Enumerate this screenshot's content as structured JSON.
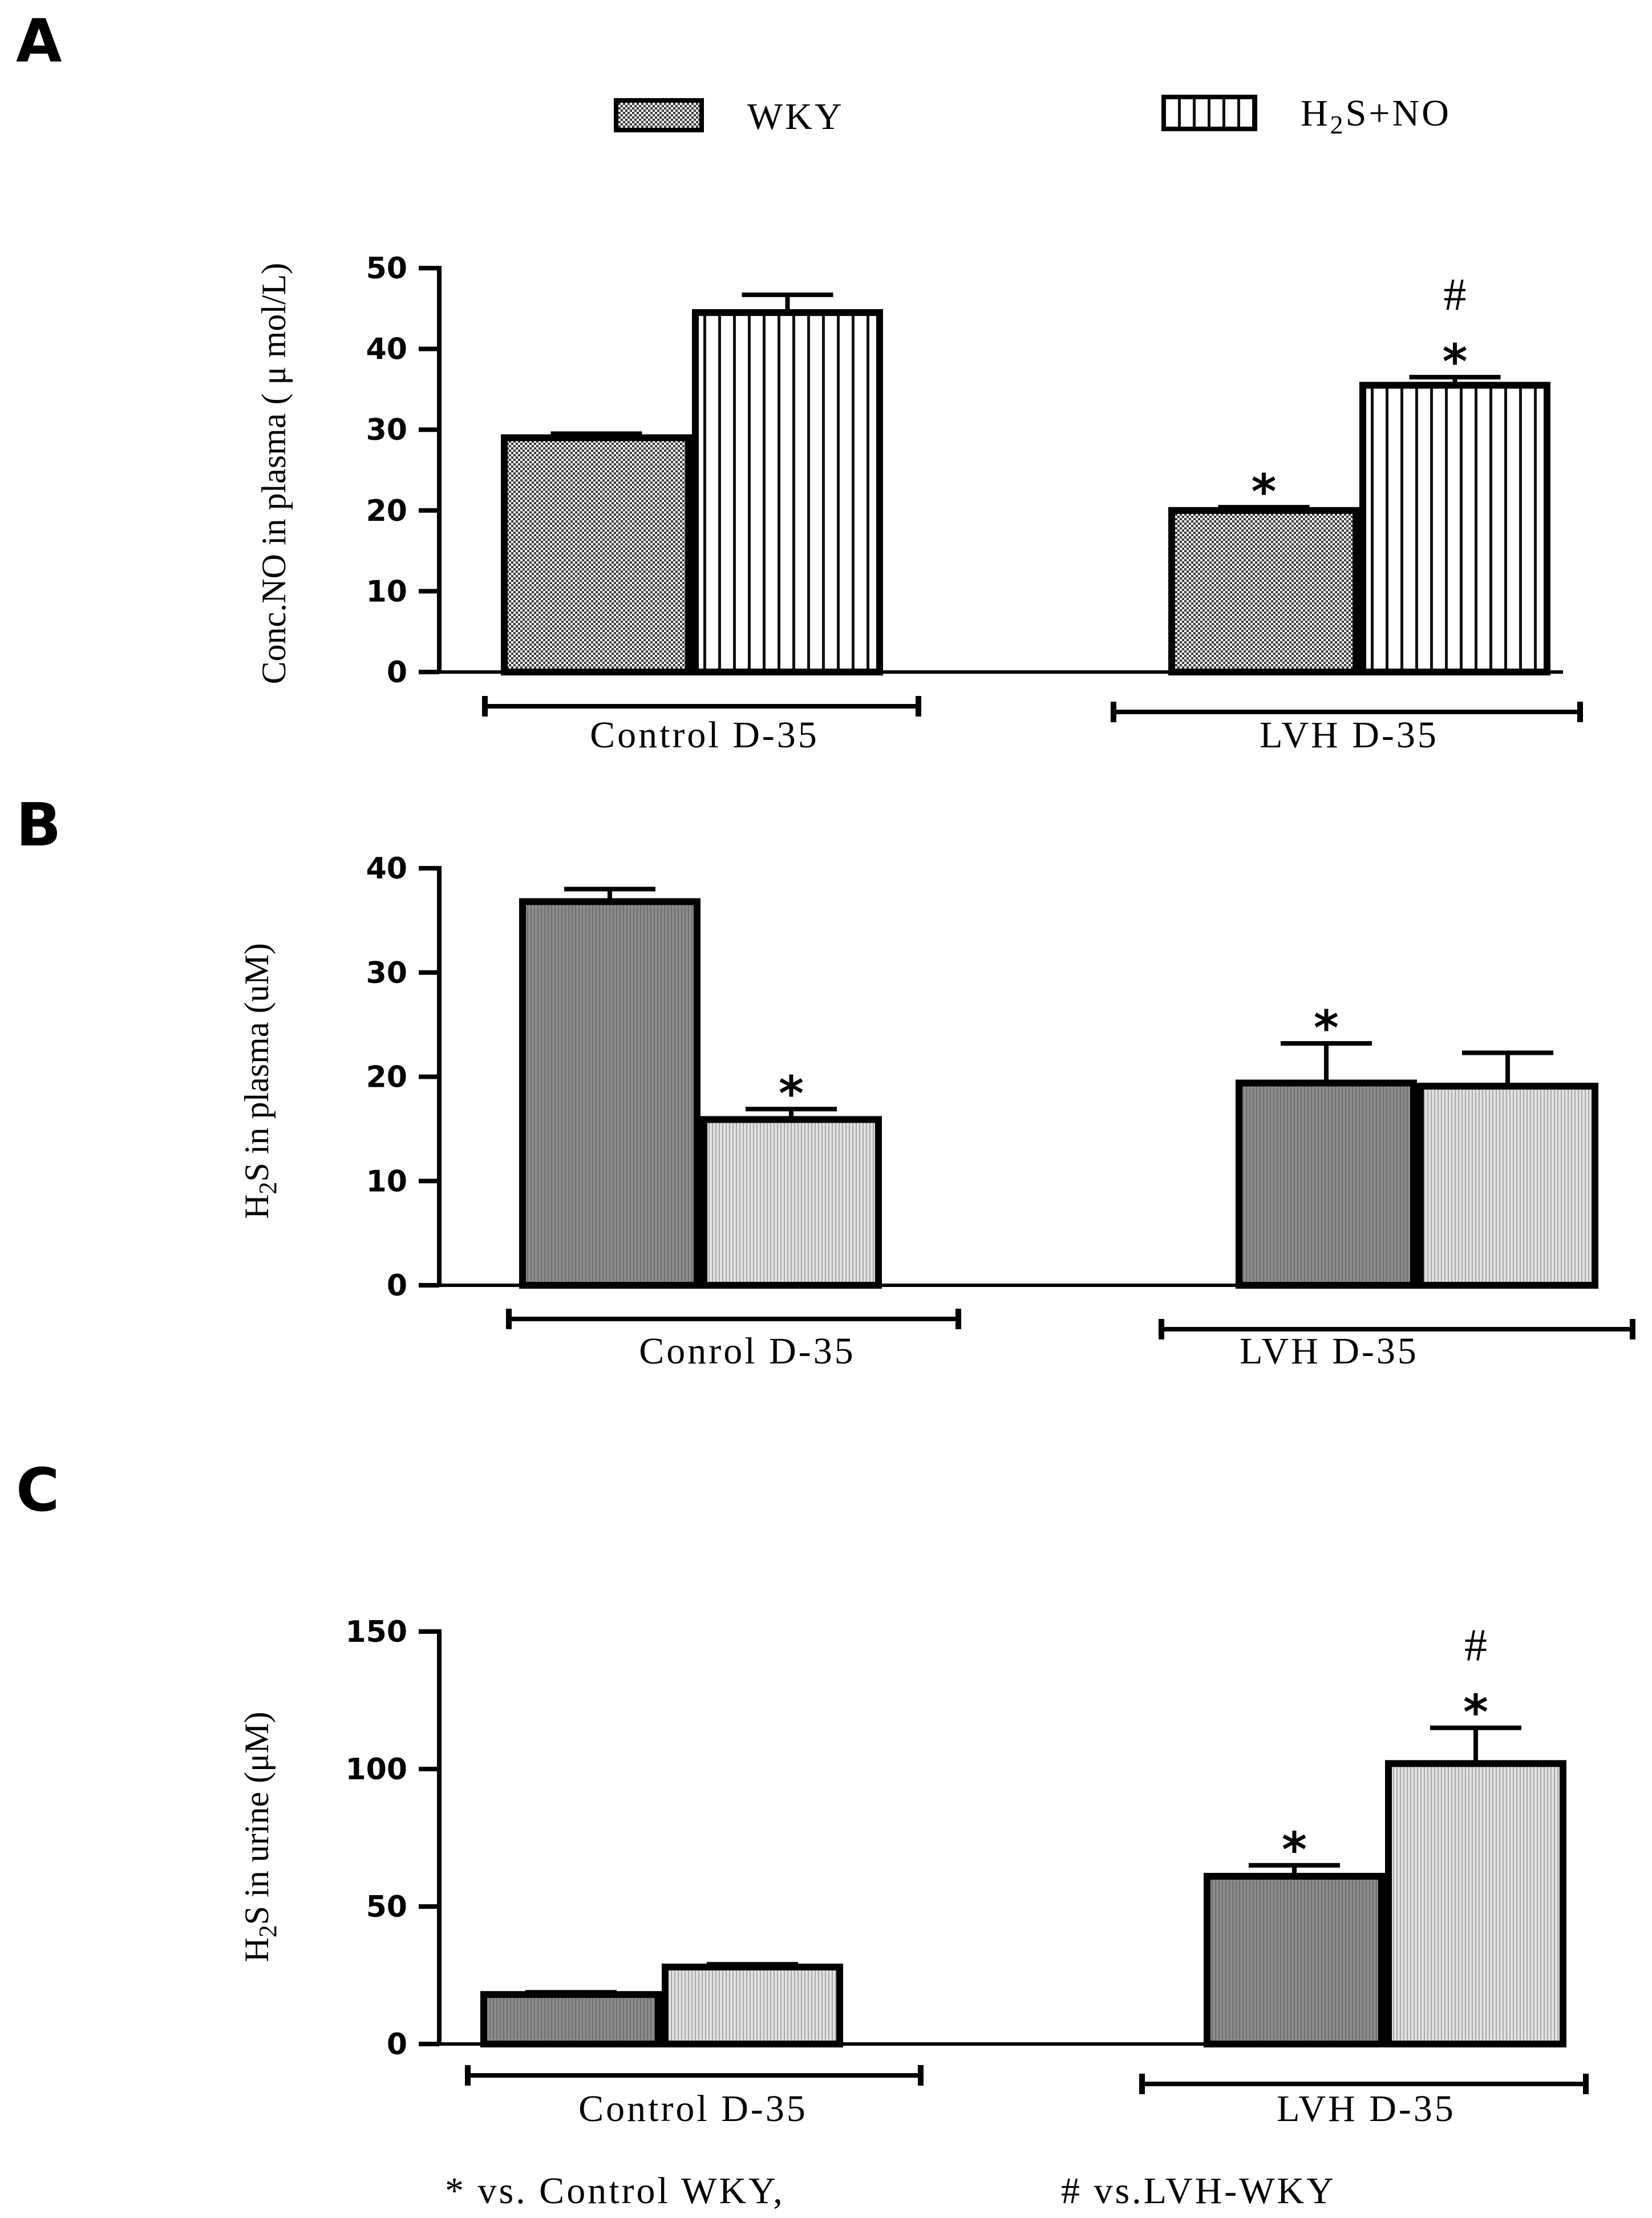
{
  "legend": {
    "items": [
      {
        "name": "WKY",
        "pattern": "checker"
      },
      {
        "name": "H2S+NO",
        "pattern": "vstripes",
        "html_label": "H₂S+NO"
      }
    ]
  },
  "colors": {
    "ink": "#000000",
    "bar_gray": "#8a8a8a",
    "bar_light": "#d2d2d2"
  },
  "footnote": {
    "star": "* vs. Control WKY,",
    "hash": "# vs.LVH-WKY"
  },
  "chart_data": [
    {
      "panel": "A",
      "type": "bar",
      "ylabel": "Conc.NO in plasma ( μ mol/L)",
      "ylim": [
        0,
        50
      ],
      "yticks": [
        0,
        10,
        20,
        30,
        40,
        50
      ],
      "categories": [
        "Control D-35",
        "LVH D-35"
      ],
      "series": [
        {
          "name": "WKY",
          "values": [
            29,
            20
          ],
          "errors": [
            0.5,
            0.4
          ],
          "annotations": [
            "",
            "*"
          ]
        },
        {
          "name": "H2S+NO",
          "values": [
            44.5,
            35.5
          ],
          "errors": [
            2.2,
            1.0
          ],
          "annotations": [
            "",
            "*\n#"
          ]
        }
      ]
    },
    {
      "panel": "B",
      "type": "bar",
      "ylabel": "H2S in plasma (uM)",
      "ylim": [
        0,
        40
      ],
      "yticks": [
        0,
        10,
        20,
        30,
        40
      ],
      "categories": [
        "Conrol D-35",
        "LVH D-35"
      ],
      "series": [
        {
          "name": "WKY",
          "values": [
            36.8,
            19.4
          ],
          "errors": [
            1.2,
            3.8
          ],
          "annotations": [
            "",
            "*"
          ]
        },
        {
          "name": "H2S+NO",
          "values": [
            15.9,
            19.1
          ],
          "errors": [
            1.0,
            3.2
          ],
          "annotations": [
            "*",
            ""
          ]
        }
      ]
    },
    {
      "panel": "C",
      "type": "bar",
      "ylabel": "H2S in urine (μM)",
      "ylim": [
        0,
        150
      ],
      "yticks": [
        0,
        50,
        100,
        150
      ],
      "categories": [
        "Control D-35",
        "LVH D-35"
      ],
      "series": [
        {
          "name": "WKY",
          "values": [
            18,
            61
          ],
          "errors": [
            0.8,
            4
          ],
          "annotations": [
            "",
            "*"
          ]
        },
        {
          "name": "H2S+NO",
          "values": [
            28,
            102
          ],
          "errors": [
            1.0,
            13
          ],
          "annotations": [
            "",
            "*\n#"
          ]
        }
      ]
    }
  ]
}
